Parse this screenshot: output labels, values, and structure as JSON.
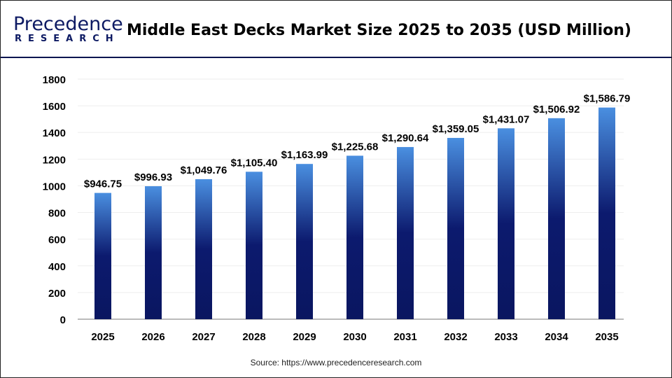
{
  "logo": {
    "line1": "Precedence",
    "line2": "RESEARCH"
  },
  "source": "Source: https://www.precedenceresearch.com",
  "colors": {
    "bar_top": "#4a8fe0",
    "bar_bottom": "#0a1660",
    "axis": "#bbbbbb",
    "grid": "#eeeeee"
  },
  "chart_data": {
    "type": "bar",
    "title": "Middle East Decks Market Size 2025 to 2035 (USD Million)",
    "categories": [
      "2025",
      "2026",
      "2027",
      "2028",
      "2029",
      "2030",
      "2031",
      "2032",
      "2033",
      "2034",
      "2035"
    ],
    "values": [
      946.75,
      996.93,
      1049.76,
      1105.4,
      1163.99,
      1225.68,
      1290.64,
      1359.05,
      1431.07,
      1506.92,
      1586.79
    ],
    "labels": [
      "$946.75",
      "$996.93",
      "$1,049.76",
      "$1,105.40",
      "$1,163.99",
      "$1,225.68",
      "$1,290.64",
      "$1,359.05",
      "$1,431.07",
      "$1,506.92",
      "$1,586.79"
    ],
    "yticks": [
      "0",
      "200",
      "400",
      "600",
      "800",
      "1000",
      "1200",
      "1400",
      "1600",
      "1800"
    ],
    "ylim": [
      0,
      1800
    ],
    "grid": true,
    "xlabel": "",
    "ylabel": ""
  }
}
